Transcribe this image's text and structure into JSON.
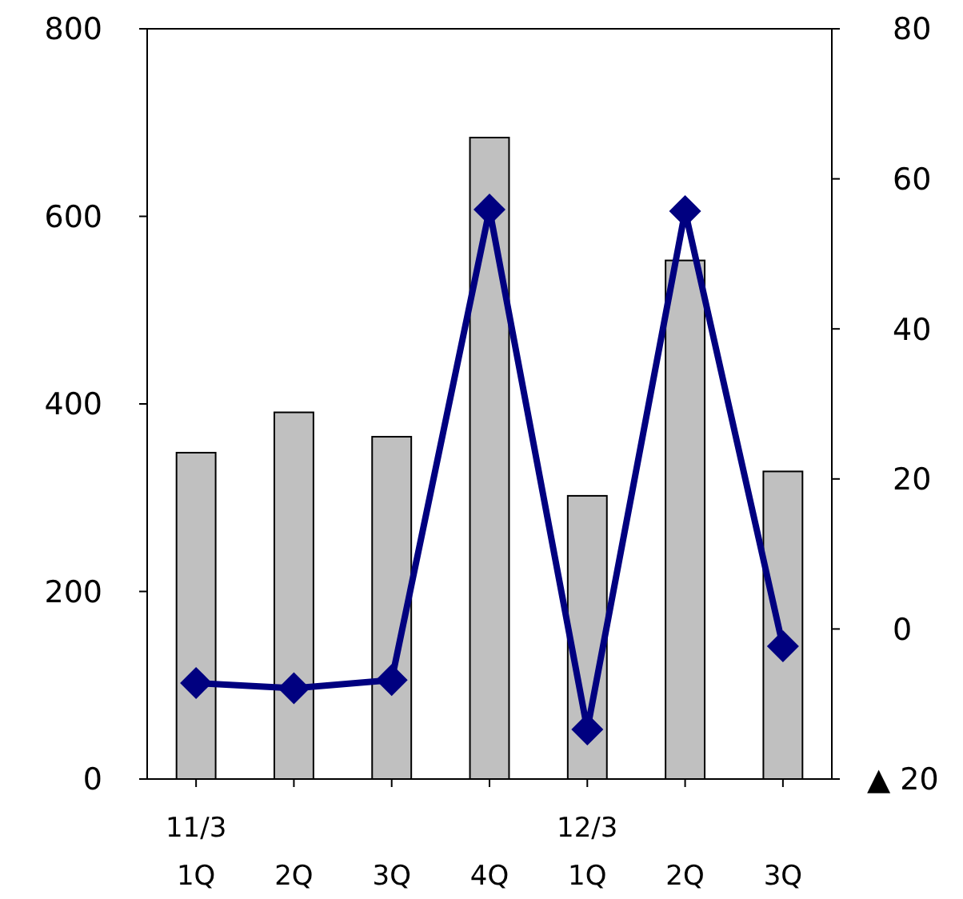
{
  "chart_data": {
    "type": "bar",
    "categories": [
      "11/3\n1Q",
      "2Q",
      "3Q",
      "4Q",
      "12/3\n1Q",
      "2Q",
      "3Q"
    ],
    "series": [
      {
        "color": "#c0c0c0",
        "values": [
          348,
          391,
          365,
          684,
          302,
          553,
          328
        ]
      },
      {
        "type": "line",
        "axis": "y2",
        "color": "#000080",
        "marker": "diamond",
        "values": [
          -7.2,
          -7.9,
          -6.8,
          55.9,
          -13.4,
          55.7,
          -2.3
        ]
      }
    ],
    "ylim": [
      0,
      800
    ],
    "yticks": [
      0,
      200,
      400,
      600,
      800
    ],
    "y2lim": [
      -20,
      80
    ],
    "y2ticks": [
      {
        "value": -20,
        "label": "▲ 20"
      },
      0,
      20,
      40,
      60,
      80
    ],
    "grid": false
  }
}
